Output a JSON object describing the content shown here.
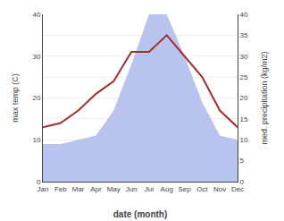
{
  "chart_data": {
    "type": "line",
    "xlabel": "date (month)",
    "ylabel": "max temp (C)",
    "y2label": "med. precipitation (kg/m2)",
    "categories": [
      "Jan",
      "Feb",
      "Mar",
      "Apr",
      "May",
      "Jun",
      "Jul",
      "Aug",
      "Sep",
      "Oct",
      "Nov",
      "Dec"
    ],
    "series": [
      {
        "type": "area",
        "axis": "y2",
        "color": "#b8c4ee",
        "values": [
          9,
          9,
          10,
          11,
          17,
          28,
          40,
          40,
          30,
          19,
          11,
          10
        ]
      },
      {
        "type": "line",
        "color": "#a03030",
        "values": [
          13,
          14,
          17,
          21,
          24,
          31,
          31,
          35,
          30,
          25,
          17,
          13
        ]
      }
    ],
    "ylim": [
      0,
      40
    ],
    "yticks": [
      0,
      10,
      20,
      30,
      40
    ],
    "y2lim": [
      0,
      40
    ],
    "y2ticks": [
      0,
      5,
      10,
      15,
      20,
      25,
      30,
      35,
      40
    ],
    "grid": true
  }
}
